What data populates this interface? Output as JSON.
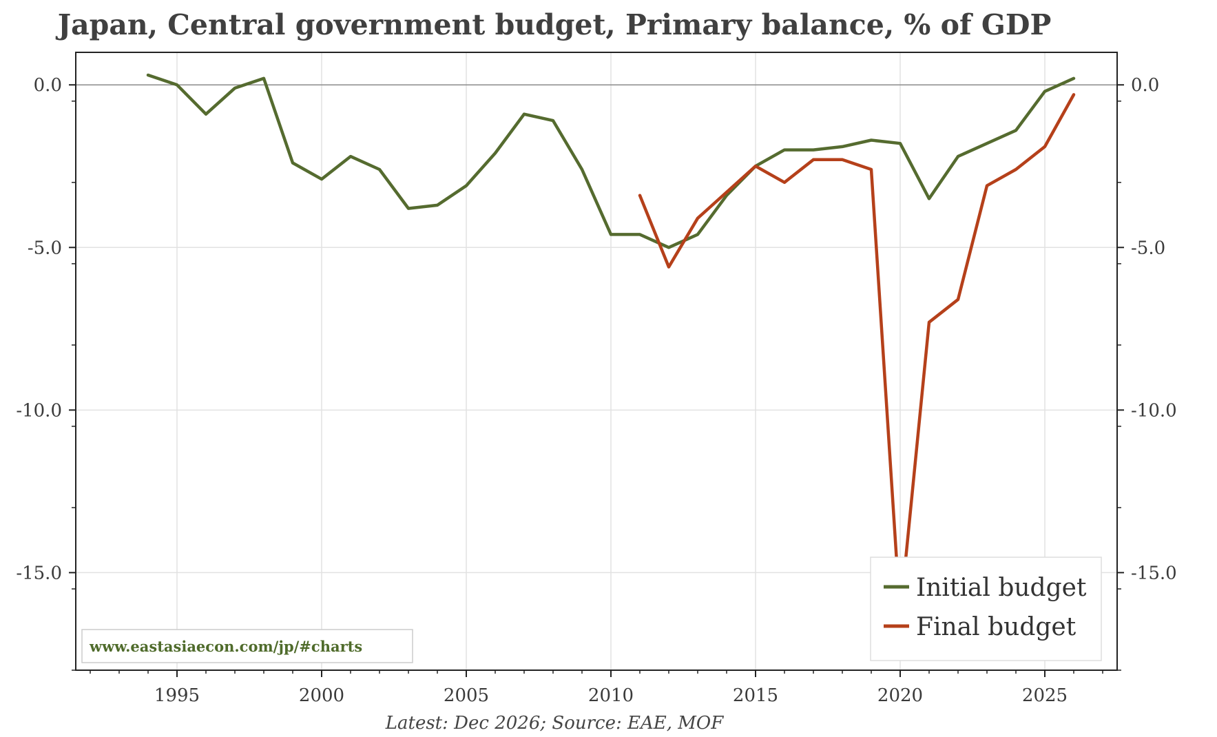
{
  "chart_data": {
    "type": "line",
    "title": "Japan, Central government budget, Primary balance, % of GDP",
    "xlabel": "",
    "ylabel": "",
    "xlim": [
      1991.5,
      2027.5
    ],
    "ylim": [
      -18.0,
      1.0
    ],
    "x_ticks": [
      1995,
      2000,
      2005,
      2010,
      2015,
      2020,
      2025
    ],
    "y_ticks": [
      0.0,
      -5.0,
      -10.0,
      -15.0
    ],
    "y_tick_labels": [
      "0.0",
      "-5.0",
      "-10.0",
      "-15.0"
    ],
    "x_tick_labels": [
      "1995",
      "2000",
      "2005",
      "2010",
      "2015",
      "2020",
      "2025"
    ],
    "y_axis_both_sides": true,
    "grid": true,
    "zero_line": true,
    "legend_position": "bottom-right",
    "series": [
      {
        "name": "Initial budget",
        "color": "#556b2f",
        "x": [
          1994,
          1995,
          1996,
          1997,
          1998,
          1999,
          2000,
          2001,
          2002,
          2003,
          2004,
          2005,
          2006,
          2007,
          2008,
          2009,
          2010,
          2011,
          2012,
          2013,
          2014,
          2015,
          2016,
          2017,
          2018,
          2019,
          2020,
          2021,
          2022,
          2023,
          2024,
          2025,
          2026
        ],
        "values": [
          0.3,
          0.0,
          -0.9,
          -0.1,
          0.2,
          -2.4,
          -2.9,
          -2.2,
          -2.6,
          -3.8,
          -3.7,
          -3.1,
          -2.1,
          -0.9,
          -1.1,
          -2.6,
          -4.6,
          -4.6,
          -5.0,
          -4.6,
          -3.4,
          -2.5,
          -2.0,
          -2.0,
          -1.9,
          -1.7,
          -1.8,
          -3.5,
          -2.2,
          -1.8,
          -1.4,
          -0.2,
          0.2
        ]
      },
      {
        "name": "Final budget",
        "color": "#b5401a",
        "x": [
          2011,
          2012,
          2013,
          2014,
          2015,
          2016,
          2017,
          2018,
          2019,
          2020,
          2021,
          2022,
          2023,
          2024,
          2025,
          2026
        ],
        "values": [
          -3.4,
          -5.6,
          -4.1,
          -3.3,
          -2.5,
          -3.0,
          -2.3,
          -2.3,
          -2.6,
          -16.3,
          -7.3,
          -6.6,
          -3.1,
          -2.6,
          -1.9,
          -0.3
        ]
      }
    ]
  },
  "watermark": "www.eastasiaecon.com/jp/#charts",
  "footer": "Latest: Dec 2026; Source: EAE, MOF",
  "colors": {
    "initial": "#556b2f",
    "final": "#b5401a",
    "grid": "#e2e2e2",
    "zero_line": "#8a8a8a"
  }
}
